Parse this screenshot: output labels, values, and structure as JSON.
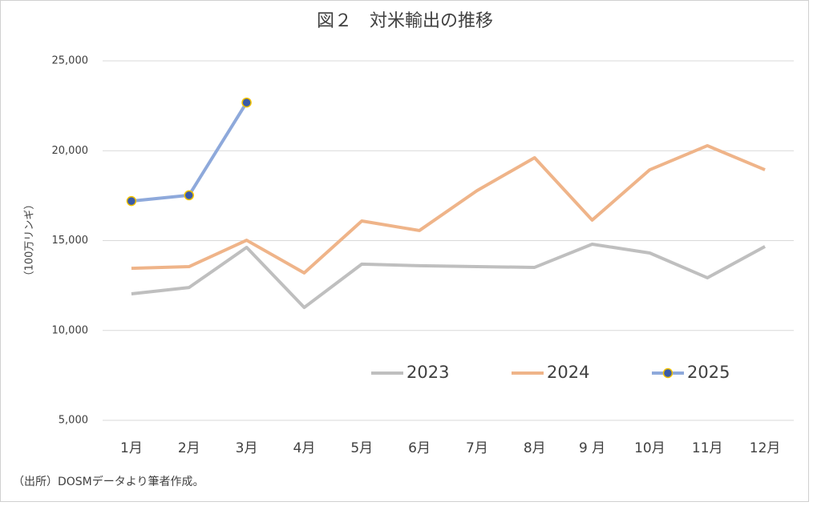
{
  "chart_data": {
    "type": "line",
    "title": "図２　対米輸出の推移",
    "ylabel": "（100万リンギ）",
    "note": "（出所）DOSMデータより筆者作成。",
    "categories": [
      "1月",
      "2月",
      "3月",
      "4月",
      "5月",
      "6月",
      "7月",
      "8月",
      "9 月",
      "10月",
      "11月",
      "12月"
    ],
    "series": [
      {
        "name": "2023",
        "color": "#bfbfbf",
        "values": [
          12040,
          12390,
          14620,
          11280,
          13690,
          13600,
          13550,
          13510,
          14800,
          14310,
          12930,
          14670
        ]
      },
      {
        "name": "2024",
        "color": "#efb489",
        "values": [
          13460,
          13550,
          15020,
          13200,
          16090,
          15560,
          17780,
          19610,
          16140,
          18940,
          20280,
          18940
        ]
      },
      {
        "name": "2025",
        "color": "#8ea9db",
        "markers": true,
        "marker_color": "#3a5ba8",
        "marker_edge": "#f2c200",
        "values": [
          17200,
          17520,
          22680,
          null,
          null,
          null,
          null,
          null,
          null,
          null,
          null,
          null
        ]
      }
    ],
    "ylim": [
      5000,
      25000
    ],
    "yticks": [
      {
        "value": 5000,
        "label": "5,000"
      },
      {
        "value": 10000,
        "label": "10,000"
      },
      {
        "value": 15000,
        "label": "15,000"
      },
      {
        "value": 20000,
        "label": "20,000"
      },
      {
        "value": 25000,
        "label": "25,000"
      }
    ],
    "grid": true
  }
}
